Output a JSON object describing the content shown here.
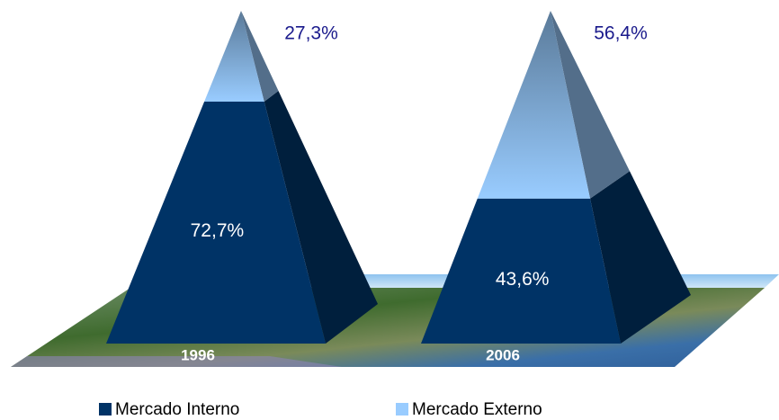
{
  "chart_data": {
    "type": "pyramid",
    "categories": [
      "1996",
      "2006"
    ],
    "series": [
      {
        "name": "Mercado Interno",
        "color": "#003366",
        "values": [
          72.7,
          43.6
        ],
        "value_labels": [
          "72,7%",
          "43,6%"
        ]
      },
      {
        "name": "Mercado Externo",
        "color": "#99ccff",
        "values": [
          27.3,
          56.4
        ],
        "value_labels": [
          "27,3%",
          "56,4%"
        ]
      }
    ]
  }
}
